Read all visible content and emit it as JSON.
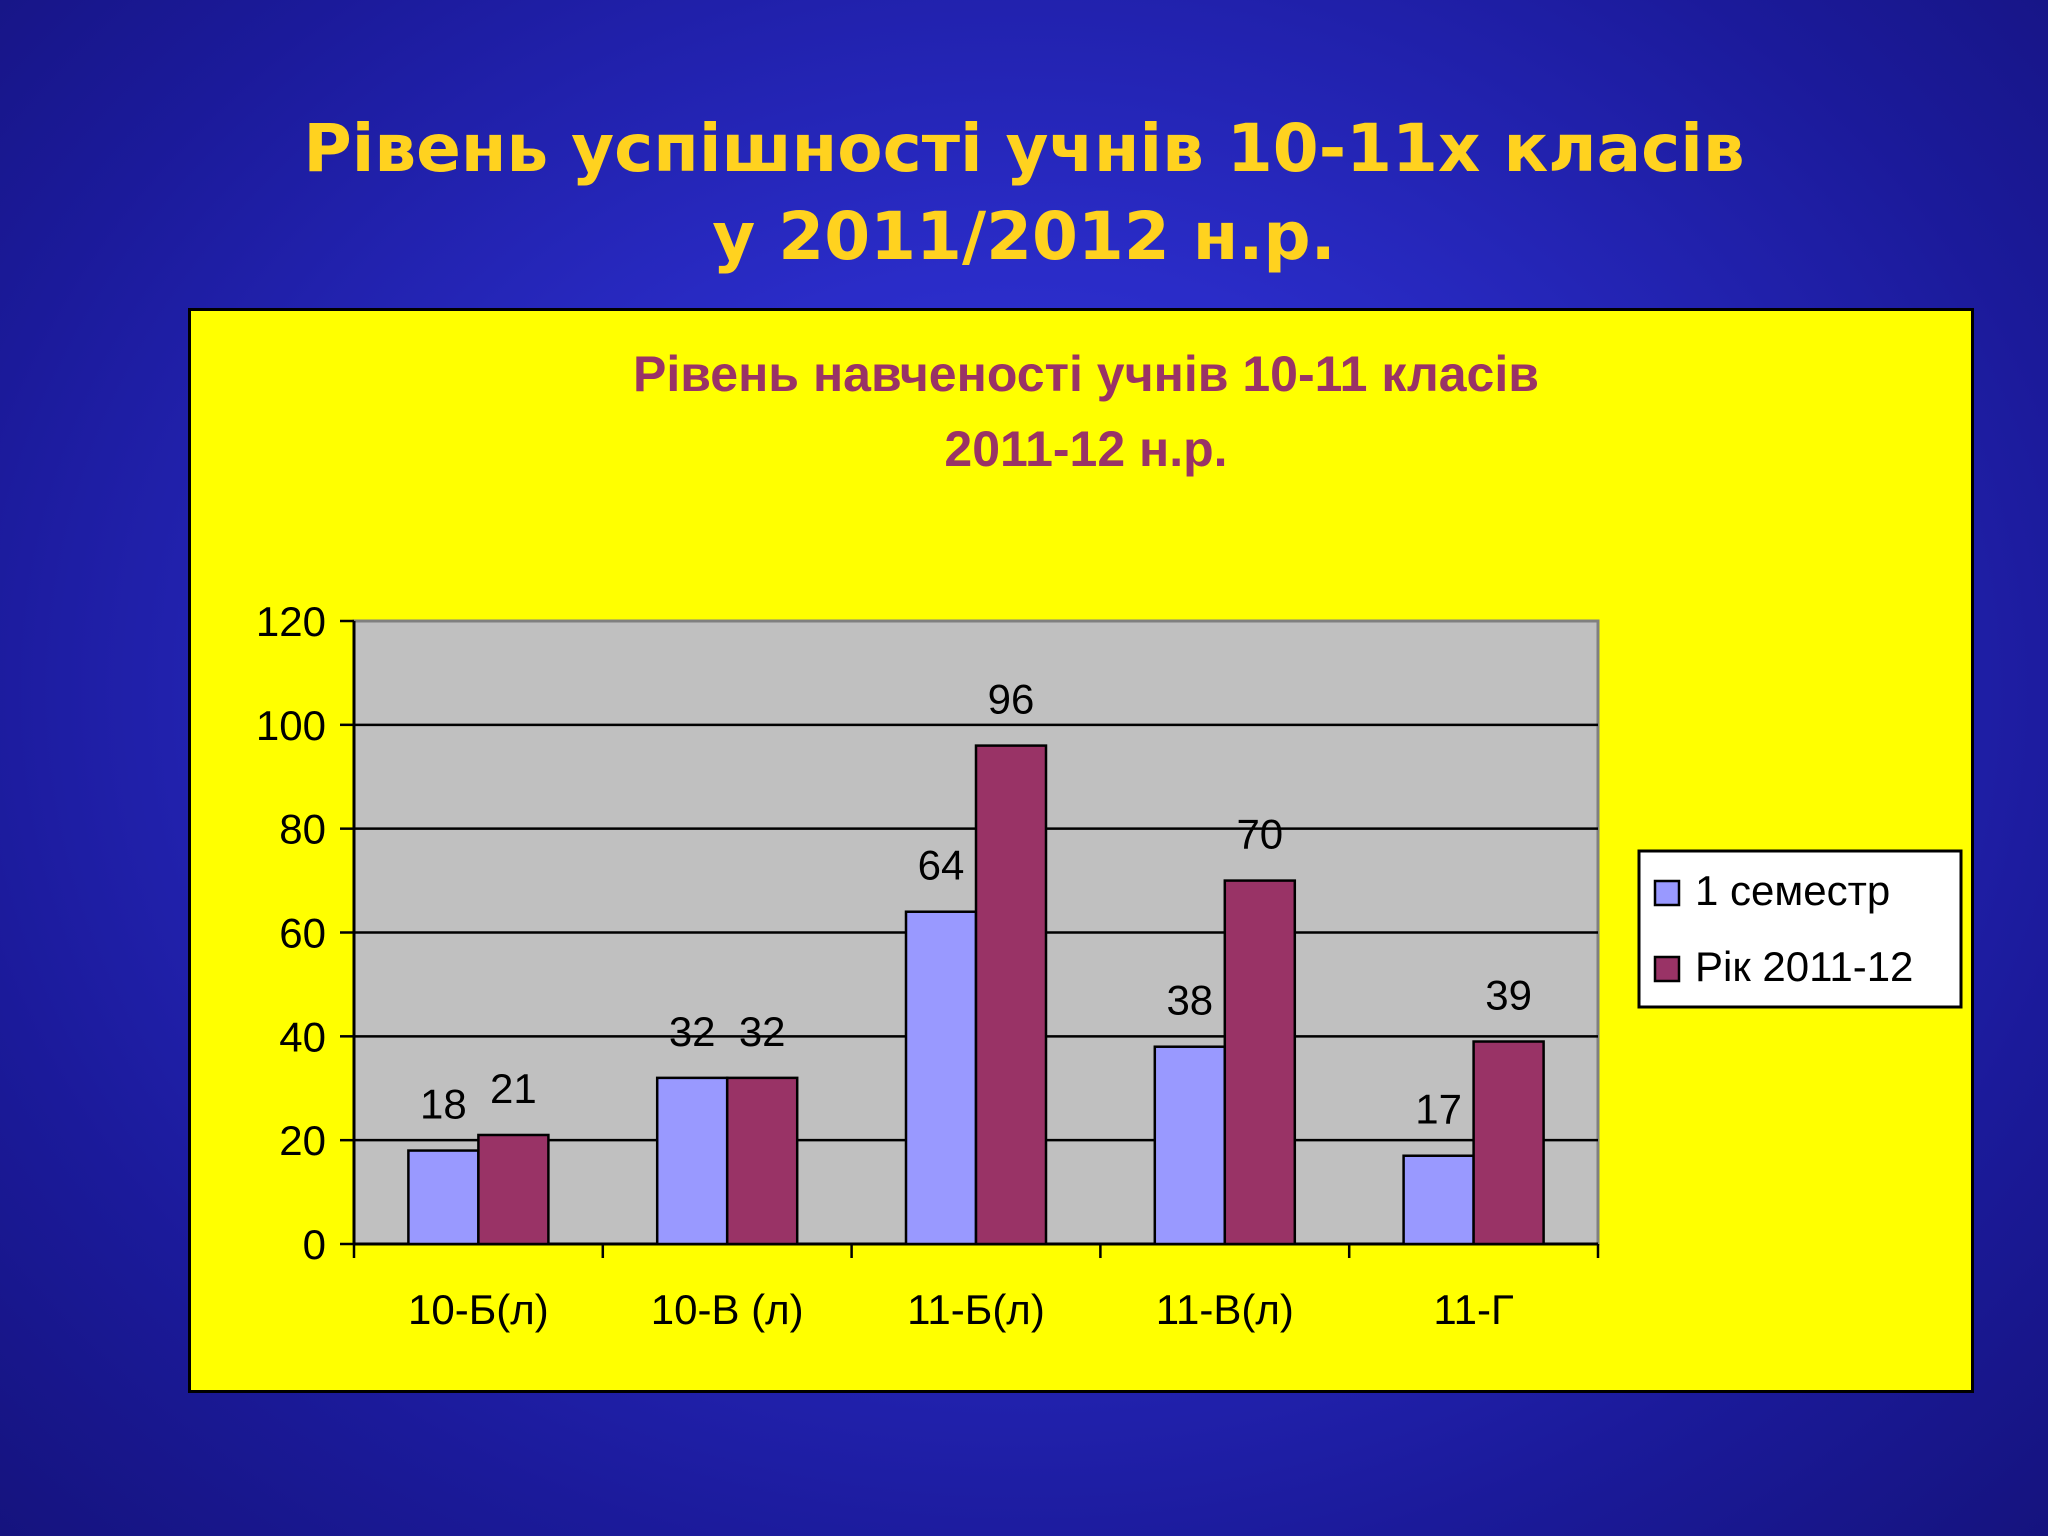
{
  "slide": {
    "title_line1": "Рівень успішності учнів 10-11х класів",
    "title_line2": "у 2011/2012 н.р."
  },
  "chart_data": {
    "type": "bar",
    "title_line1": "Рівень навченості учнів 10-11 класів",
    "title_line2": "2011-12 н.р.",
    "categories": [
      "10-Б(л)",
      "10-В (л)",
      "11-Б(л)",
      "11-В(л)",
      "11-Г"
    ],
    "series": [
      {
        "name": "1 семестр",
        "values": [
          18,
          32,
          64,
          38,
          17
        ],
        "color": "#9999ff"
      },
      {
        "name": "Рік 2011-12",
        "values": [
          21,
          32,
          96,
          70,
          39
        ],
        "color": "#993366"
      }
    ],
    "ylim": [
      0,
      120
    ],
    "yticks": [
      0,
      20,
      40,
      60,
      80,
      100,
      120
    ],
    "grid": true,
    "legend_position": "right",
    "colors": {
      "plot_background": "#c0c0c0",
      "panel_background": "#ffff00",
      "title_color": "#993366",
      "slide_title_color": "#ffd21f"
    }
  }
}
